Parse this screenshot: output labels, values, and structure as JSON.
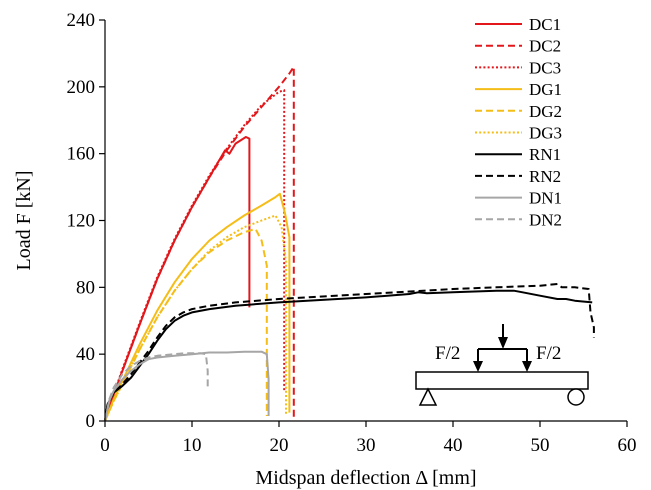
{
  "chart_data": {
    "type": "line",
    "title": "",
    "xlabel": "Midspan deflection Δ [mm]",
    "ylabel": "Load F [kN]",
    "xlim": [
      0,
      60
    ],
    "ylim": [
      0,
      240
    ],
    "xticks": [
      0,
      10,
      20,
      30,
      40,
      50,
      60
    ],
    "yticks": [
      0,
      40,
      80,
      120,
      160,
      200,
      240
    ],
    "grid": false,
    "legend_position": "top-right",
    "series": [
      {
        "name": "DC1",
        "color": "#e3171b",
        "dash": "solid",
        "points": [
          [
            0,
            0
          ],
          [
            1,
            16
          ],
          [
            2,
            30
          ],
          [
            4,
            58
          ],
          [
            6,
            85
          ],
          [
            8,
            108
          ],
          [
            10,
            128
          ],
          [
            12,
            146
          ],
          [
            13.8,
            162
          ],
          [
            14.3,
            160
          ],
          [
            15,
            166
          ],
          [
            16.2,
            170
          ],
          [
            16.6,
            169
          ],
          [
            16.6,
            68
          ]
        ]
      },
      {
        "name": "DC2",
        "color": "#e3171b",
        "dash": "dashed",
        "points": [
          [
            0,
            0
          ],
          [
            1,
            16
          ],
          [
            2,
            30
          ],
          [
            4,
            58
          ],
          [
            6,
            85
          ],
          [
            8,
            108
          ],
          [
            10,
            128
          ],
          [
            12,
            146
          ],
          [
            14,
            162
          ],
          [
            16,
            176
          ],
          [
            18,
            188
          ],
          [
            20,
            200
          ],
          [
            21.2,
            208
          ],
          [
            21.7,
            212
          ],
          [
            21.7,
            2
          ]
        ]
      },
      {
        "name": "DC3",
        "color": "#e3171b",
        "dash": "dotted",
        "points": [
          [
            0,
            0
          ],
          [
            1,
            16
          ],
          [
            2,
            31
          ],
          [
            4,
            59
          ],
          [
            6,
            86
          ],
          [
            8,
            109
          ],
          [
            10,
            129
          ],
          [
            12,
            147
          ],
          [
            14,
            163
          ],
          [
            16,
            177
          ],
          [
            18,
            189
          ],
          [
            20,
            197
          ],
          [
            20.6,
            198
          ],
          [
            20.6,
            18
          ]
        ]
      },
      {
        "name": "DG1",
        "color": "#f5bd17",
        "dash": "solid",
        "points": [
          [
            0,
            0
          ],
          [
            1,
            13
          ],
          [
            2,
            24
          ],
          [
            4,
            46
          ],
          [
            6,
            66
          ],
          [
            8,
            83
          ],
          [
            10,
            97
          ],
          [
            12,
            108
          ],
          [
            14,
            116
          ],
          [
            16,
            123
          ],
          [
            18,
            129
          ],
          [
            19.6,
            134
          ],
          [
            20.1,
            136
          ],
          [
            20.7,
            124
          ],
          [
            21.2,
            110
          ],
          [
            21.2,
            5
          ]
        ]
      },
      {
        "name": "DG2",
        "color": "#f5bd17",
        "dash": "dashed",
        "points": [
          [
            0,
            0
          ],
          [
            1,
            12
          ],
          [
            2,
            22
          ],
          [
            4,
            43
          ],
          [
            6,
            62
          ],
          [
            8,
            78
          ],
          [
            10,
            91
          ],
          [
            12,
            101
          ],
          [
            14,
            108
          ],
          [
            16,
            113
          ],
          [
            17.3,
            115
          ],
          [
            18,
            108
          ],
          [
            18.6,
            93
          ],
          [
            18.6,
            3
          ]
        ]
      },
      {
        "name": "DG3",
        "color": "#f5bd17",
        "dash": "dotted",
        "points": [
          [
            0,
            0
          ],
          [
            1,
            12
          ],
          [
            2,
            22
          ],
          [
            4,
            43
          ],
          [
            6,
            62
          ],
          [
            8,
            78
          ],
          [
            10,
            91
          ],
          [
            12,
            102
          ],
          [
            14,
            110
          ],
          [
            16,
            116
          ],
          [
            18,
            120
          ],
          [
            19.6,
            123
          ],
          [
            20.3,
            116
          ],
          [
            20.8,
            95
          ],
          [
            20.8,
            3
          ]
        ]
      },
      {
        "name": "RN1",
        "color": "#000000",
        "dash": "solid",
        "points": [
          [
            0,
            0
          ],
          [
            0.3,
            10
          ],
          [
            1,
            17
          ],
          [
            2,
            21
          ],
          [
            3,
            26
          ],
          [
            4,
            33
          ],
          [
            5,
            40
          ],
          [
            6,
            48
          ],
          [
            7,
            55
          ],
          [
            8,
            60
          ],
          [
            9,
            63
          ],
          [
            10,
            65
          ],
          [
            12,
            67
          ],
          [
            15,
            69
          ],
          [
            20,
            71
          ],
          [
            25,
            72.5
          ],
          [
            30,
            74
          ],
          [
            35,
            76
          ],
          [
            36,
            77
          ],
          [
            37,
            76.5
          ],
          [
            40,
            77
          ],
          [
            45,
            78
          ],
          [
            47,
            78
          ],
          [
            48,
            77
          ],
          [
            50,
            75
          ],
          [
            52,
            73
          ],
          [
            53,
            73
          ],
          [
            54,
            72
          ],
          [
            56,
            71
          ]
        ]
      },
      {
        "name": "RN2",
        "color": "#000000",
        "dash": "dashed",
        "points": [
          [
            0,
            0
          ],
          [
            0.3,
            10
          ],
          [
            1,
            17
          ],
          [
            2,
            22
          ],
          [
            3,
            28
          ],
          [
            4,
            35
          ],
          [
            5,
            42
          ],
          [
            6,
            50
          ],
          [
            7,
            57
          ],
          [
            8,
            62
          ],
          [
            9,
            65
          ],
          [
            10,
            67
          ],
          [
            12,
            69
          ],
          [
            15,
            71
          ],
          [
            20,
            73
          ],
          [
            25,
            74.5
          ],
          [
            30,
            76
          ],
          [
            35,
            77.5
          ],
          [
            40,
            79
          ],
          [
            45,
            80
          ],
          [
            50,
            81
          ],
          [
            52,
            82
          ],
          [
            52.5,
            80
          ],
          [
            54,
            80
          ],
          [
            55.6,
            79
          ],
          [
            55.8,
            65
          ],
          [
            56.2,
            56
          ],
          [
            56.2,
            50
          ]
        ]
      },
      {
        "name": "DN1",
        "color": "#a6a6a6",
        "dash": "solid",
        "points": [
          [
            0,
            0
          ],
          [
            0.5,
            12
          ],
          [
            1,
            18
          ],
          [
            2,
            25
          ],
          [
            3,
            30
          ],
          [
            4,
            34
          ],
          [
            5,
            37
          ],
          [
            6,
            38
          ],
          [
            8,
            39
          ],
          [
            10,
            40
          ],
          [
            12,
            41
          ],
          [
            14,
            41
          ],
          [
            16,
            41.5
          ],
          [
            18,
            41.5
          ],
          [
            18.6,
            40
          ],
          [
            18.8,
            25
          ],
          [
            18.8,
            3
          ]
        ]
      },
      {
        "name": "DN2",
        "color": "#a6a6a6",
        "dash": "dashed",
        "points": [
          [
            0,
            0
          ],
          [
            0.5,
            13
          ],
          [
            1,
            20
          ],
          [
            2,
            28
          ],
          [
            3,
            33
          ],
          [
            4,
            36
          ],
          [
            5,
            38
          ],
          [
            6,
            39
          ],
          [
            7,
            39.5
          ],
          [
            8,
            40
          ],
          [
            9,
            40.5
          ],
          [
            10,
            40.5
          ],
          [
            11,
            40.5
          ],
          [
            11.6,
            40
          ],
          [
            11.8,
            30
          ],
          [
            11.8,
            20
          ]
        ]
      }
    ],
    "schematic": {
      "load_left_label": "F/2",
      "load_right_label": "F/2"
    }
  }
}
